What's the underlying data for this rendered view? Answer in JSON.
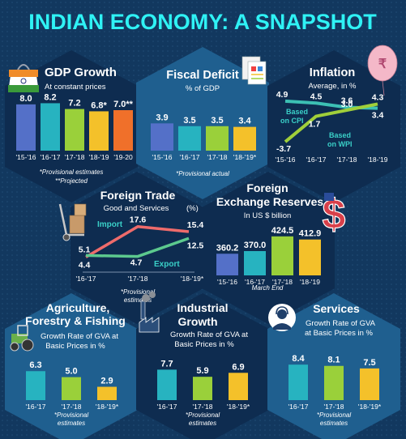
{
  "title": "INDIAN ECONOMY: A SNAPSHOT",
  "colors": {
    "background": "#12385f",
    "hex_dark": "#0e2c50",
    "hex_light": "#1f5f8f",
    "title": "#2ff2f5",
    "blue": "#5470c8",
    "teal": "#27b3c0",
    "green": "#9ad03a",
    "yellow": "#f4c12a",
    "orange": "#f0702a",
    "cpi_line": "#3cc0b4",
    "wpi_line": "#a0cf3a",
    "import_line": "#ee6b6b",
    "export_line": "#5cc98e"
  },
  "panels": {
    "gdp": {
      "title": "GDP Growth",
      "subtitle": "At constant prices",
      "note1": "*Provisional estimates",
      "note2": "**Projected",
      "icon": "india-flag-bag-icon"
    },
    "fiscal": {
      "title": "Fiscal Deficit",
      "subtitle": "% of GDP",
      "note": "*Provisional actual",
      "icon": "documents-icon"
    },
    "inflation": {
      "title": "Inflation",
      "subtitle": "Average, in %",
      "label_cpi_1": "Based",
      "label_cpi_2": "on CPI",
      "label_wpi_1": "Based",
      "label_wpi_2": "on WPI",
      "icon": "rupee-balloon-icon"
    },
    "trade": {
      "title": "Foreign Trade",
      "subtitle": "Good and Services",
      "unit": "(%)",
      "label_import": "Import",
      "label_export": "Export",
      "note1": "*Provisional",
      "note2": "estimates",
      "icon": "hand-truck-icon"
    },
    "forex": {
      "title_1": "Foreign",
      "title_2": "Exchange Reserves",
      "subtitle": "In US $ billion",
      "note": "March End",
      "icon": "dollar-flag-icon"
    },
    "agri": {
      "title_1": "Agriculture,",
      "title_2": "Forestry & Fishing",
      "subtitle_1": "Growth Rate of GVA at",
      "subtitle_2": "Basic Prices in %",
      "note1": "*Provisional",
      "note2": "estimates",
      "icon": "tractor-icon"
    },
    "industrial": {
      "title_1": "Industrial",
      "title_2": "Growth",
      "subtitle_1": "Growth Rate of GVA at",
      "subtitle_2": "Basic Prices in %",
      "note1": "*Provisional",
      "note2": "estimates",
      "icon": "factory-icon"
    },
    "services": {
      "title": "Services",
      "subtitle_1": "Growth Rate of GVA",
      "subtitle_2": "at Basic Prices in %",
      "note1": "*Provisional",
      "note2": "estimates",
      "icon": "customer-support-icon"
    }
  },
  "chart_data": [
    {
      "id": "gdp",
      "type": "bar",
      "title": "GDP Growth",
      "categories": [
        "'15-'16",
        "'16-'17",
        "'17-'18",
        "'18-'19",
        "'19-20"
      ],
      "values": [
        8.0,
        8.2,
        7.2,
        6.8,
        7.0
      ],
      "labels": [
        "8.0",
        "8.2",
        "7.2",
        "6.8*",
        "7.0**"
      ],
      "colors": [
        "#5470c8",
        "#27b3c0",
        "#9ad03a",
        "#f4c12a",
        "#f0702a"
      ]
    },
    {
      "id": "fiscal",
      "type": "bar",
      "title": "Fiscal Deficit",
      "categories": [
        "'15-'16",
        "'16-'17",
        "'17-'18",
        "'18-'19*"
      ],
      "values": [
        3.9,
        3.5,
        3.5,
        3.4
      ],
      "labels": [
        "3.9",
        "3.5",
        "3.5",
        "3.4"
      ],
      "colors": [
        "#5470c8",
        "#27b3c0",
        "#9ad03a",
        "#f4c12a"
      ]
    },
    {
      "id": "inflation",
      "type": "line",
      "title": "Inflation",
      "categories": [
        "'15-'16",
        "'16-'17",
        "'17-'18",
        "'18-'19"
      ],
      "series": [
        {
          "name": "Based on CPI",
          "values": [
            4.9,
            4.5,
            3.6,
            3.4
          ],
          "labels": [
            "4.9",
            "4.5",
            "3.6",
            "3.4"
          ]
        },
        {
          "name": "Based on WPI",
          "values": [
            -3.7,
            1.7,
            3.0,
            4.3
          ],
          "labels": [
            "-3.7",
            "1.7",
            "3.0",
            "4.3"
          ]
        }
      ]
    },
    {
      "id": "trade",
      "type": "line",
      "title": "Foreign Trade",
      "categories": [
        "'16-'17",
        "'17-'18",
        "'18-'19*"
      ],
      "series": [
        {
          "name": "Import",
          "values": [
            4.4,
            17.6,
            15.4
          ],
          "labels": [
            "4.4",
            "17.6",
            "15.4"
          ]
        },
        {
          "name": "Export",
          "values": [
            5.1,
            4.7,
            12.5
          ],
          "labels": [
            "5.1",
            "4.7",
            "12.5"
          ]
        }
      ]
    },
    {
      "id": "forex",
      "type": "bar",
      "title": "Foreign Exchange Reserves",
      "categories": [
        "'15-'16",
        "'16-'17",
        "'17-'18",
        "'18-'19"
      ],
      "values": [
        360.2,
        370.0,
        424.5,
        412.9
      ],
      "labels": [
        "360.2",
        "370.0",
        "424.5",
        "412.9"
      ],
      "colors": [
        "#5470c8",
        "#27b3c0",
        "#9ad03a",
        "#f4c12a"
      ]
    },
    {
      "id": "agri",
      "type": "bar",
      "title": "Agriculture, Forestry & Fishing",
      "categories": [
        "'16-'17",
        "'17-'18",
        "'18-'19*"
      ],
      "values": [
        6.3,
        5.0,
        2.9
      ],
      "labels": [
        "6.3",
        "5.0",
        "2.9"
      ],
      "colors": [
        "#27b3c0",
        "#9ad03a",
        "#f4c12a"
      ]
    },
    {
      "id": "industrial",
      "type": "bar",
      "title": "Industrial Growth",
      "categories": [
        "'16-'17",
        "'17-'18",
        "'18-'19*"
      ],
      "values": [
        7.7,
        5.9,
        6.9
      ],
      "labels": [
        "7.7",
        "5.9",
        "6.9"
      ],
      "colors": [
        "#27b3c0",
        "#9ad03a",
        "#f4c12a"
      ]
    },
    {
      "id": "services",
      "type": "bar",
      "title": "Services",
      "categories": [
        "'16-'17",
        "'17-'18",
        "'18-'19*"
      ],
      "values": [
        8.4,
        8.1,
        7.5
      ],
      "labels": [
        "8.4",
        "8.1",
        "7.5"
      ],
      "colors": [
        "#27b3c0",
        "#9ad03a",
        "#f4c12a"
      ]
    }
  ]
}
